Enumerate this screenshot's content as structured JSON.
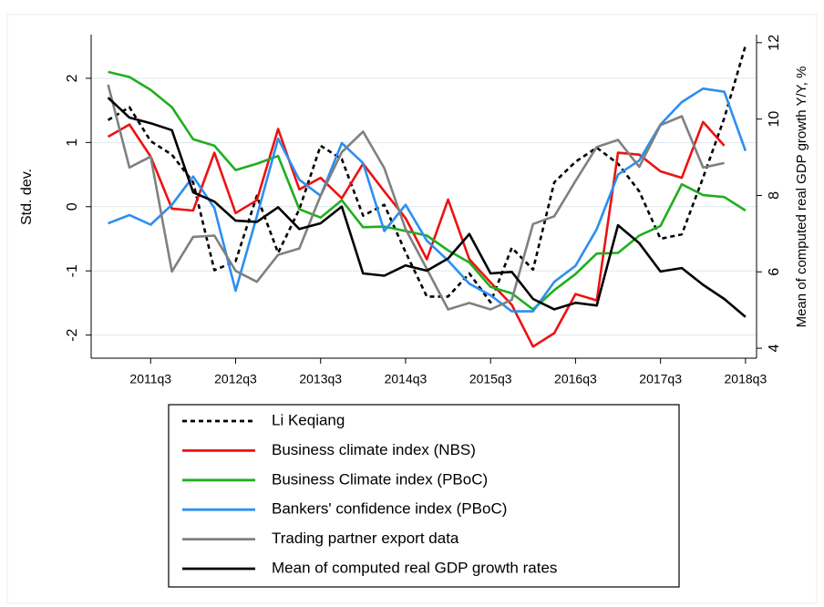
{
  "chart_data": {
    "type": "line",
    "ylabel": "Std. dev.",
    "y2label": "Mean of computed real GDP growth Y/Y, %",
    "x": [
      2011.0,
      2011.25,
      2011.5,
      2011.75,
      2012.0,
      2012.25,
      2012.5,
      2012.75,
      2013.0,
      2013.25,
      2013.5,
      2013.75,
      2014.0,
      2014.25,
      2014.5,
      2014.75,
      2015.0,
      2015.25,
      2015.5,
      2015.75,
      2016.0,
      2016.25,
      2016.5,
      2016.75,
      2017.0,
      2017.25,
      2017.5,
      2017.75,
      2018.0,
      2018.25,
      2018.5
    ],
    "xlim": [
      2010.8,
      2018.63
    ],
    "xticks": [
      {
        "value": 2011.5,
        "label": "2011q3"
      },
      {
        "value": 2012.5,
        "label": "2012q3"
      },
      {
        "value": 2013.5,
        "label": "2013q3"
      },
      {
        "value": 2014.5,
        "label": "2014q3"
      },
      {
        "value": 2015.5,
        "label": "2015q3"
      },
      {
        "value": 2016.5,
        "label": "2016q3"
      },
      {
        "value": 2017.5,
        "label": "2017q3"
      },
      {
        "value": 2018.5,
        "label": "2018q3"
      }
    ],
    "ylim": [
      -2.36,
      2.68
    ],
    "yticks": [
      -2,
      -1,
      0,
      1,
      2
    ],
    "y2lim": [
      3.74,
      12.21
    ],
    "y2ticks": [
      4,
      6,
      8,
      10,
      12
    ],
    "grid": true,
    "legend": "bottom",
    "series": [
      {
        "name": "Li Keqiang",
        "color": "#000000",
        "dash": true,
        "values": [
          1.35,
          1.55,
          1.02,
          0.81,
          0.38,
          -0.99,
          -0.85,
          0.17,
          -0.72,
          -0.04,
          0.95,
          0.74,
          -0.14,
          0.03,
          -0.71,
          -1.4,
          -1.4,
          -1.04,
          -1.49,
          -0.64,
          -0.98,
          0.38,
          0.7,
          0.92,
          0.67,
          0.24,
          -0.5,
          -0.43,
          0.45,
          1.38,
          2.51
        ]
      },
      {
        "name": "Business climate index (NBS)",
        "color": "#ee1111",
        "values": [
          1.09,
          1.28,
          0.78,
          -0.03,
          -0.06,
          0.84,
          -0.1,
          0.1,
          1.21,
          0.27,
          0.45,
          0.13,
          0.67,
          0.24,
          -0.18,
          -0.82,
          0.11,
          -0.82,
          -1.18,
          -1.53,
          -2.18,
          -1.97,
          -1.36,
          -1.46,
          0.84,
          0.81,
          0.55,
          0.45,
          1.32,
          0.95,
          null
        ]
      },
      {
        "name": "Business Climate index (PBoC)",
        "color": "#1fae1f",
        "values": [
          2.1,
          2.02,
          1.82,
          1.55,
          1.05,
          0.95,
          0.57,
          0.67,
          0.79,
          -0.04,
          -0.17,
          0.1,
          -0.32,
          -0.31,
          -0.38,
          -0.45,
          -0.68,
          -0.87,
          -1.25,
          -1.35,
          -1.6,
          -1.3,
          -1.05,
          -0.73,
          -0.72,
          -0.45,
          -0.3,
          0.35,
          0.18,
          0.15,
          -0.06
        ]
      },
      {
        "name": "Bankers' confidence index (PBoC)",
        "color": "#2b8ff0",
        "values": [
          -0.26,
          -0.13,
          -0.28,
          0.03,
          0.47,
          -0.02,
          -1.31,
          -0.15,
          1.06,
          0.42,
          0.17,
          0.99,
          0.68,
          -0.38,
          0.03,
          -0.53,
          -0.84,
          -1.2,
          -1.38,
          -1.63,
          -1.63,
          -1.17,
          -0.92,
          -0.35,
          0.5,
          0.72,
          1.28,
          1.63,
          1.84,
          1.79,
          0.87
        ]
      },
      {
        "name": "Trading partner export data",
        "color": "#808080",
        "values": [
          1.9,
          0.61,
          0.78,
          -1.01,
          -0.47,
          -0.45,
          -1.0,
          -1.17,
          -0.75,
          -0.65,
          0.17,
          0.85,
          1.17,
          0.6,
          -0.35,
          -0.97,
          -1.6,
          -1.5,
          -1.6,
          -1.45,
          -0.27,
          -0.15,
          0.4,
          0.93,
          1.04,
          0.62,
          1.27,
          1.41,
          0.61,
          0.68,
          null
        ]
      },
      {
        "name": "Mean of computed real GDP growth rates",
        "color": "#000000",
        "axis": "y2",
        "values": [
          10.56,
          10.04,
          9.89,
          9.71,
          8.08,
          7.84,
          7.34,
          7.31,
          7.69,
          7.12,
          7.27,
          7.71,
          5.96,
          5.9,
          6.17,
          6.03,
          6.35,
          6.99,
          5.96,
          6.0,
          5.29,
          5.02,
          5.19,
          5.12,
          7.22,
          6.75,
          6.01,
          6.1,
          5.66,
          5.29,
          4.82
        ]
      }
    ]
  }
}
